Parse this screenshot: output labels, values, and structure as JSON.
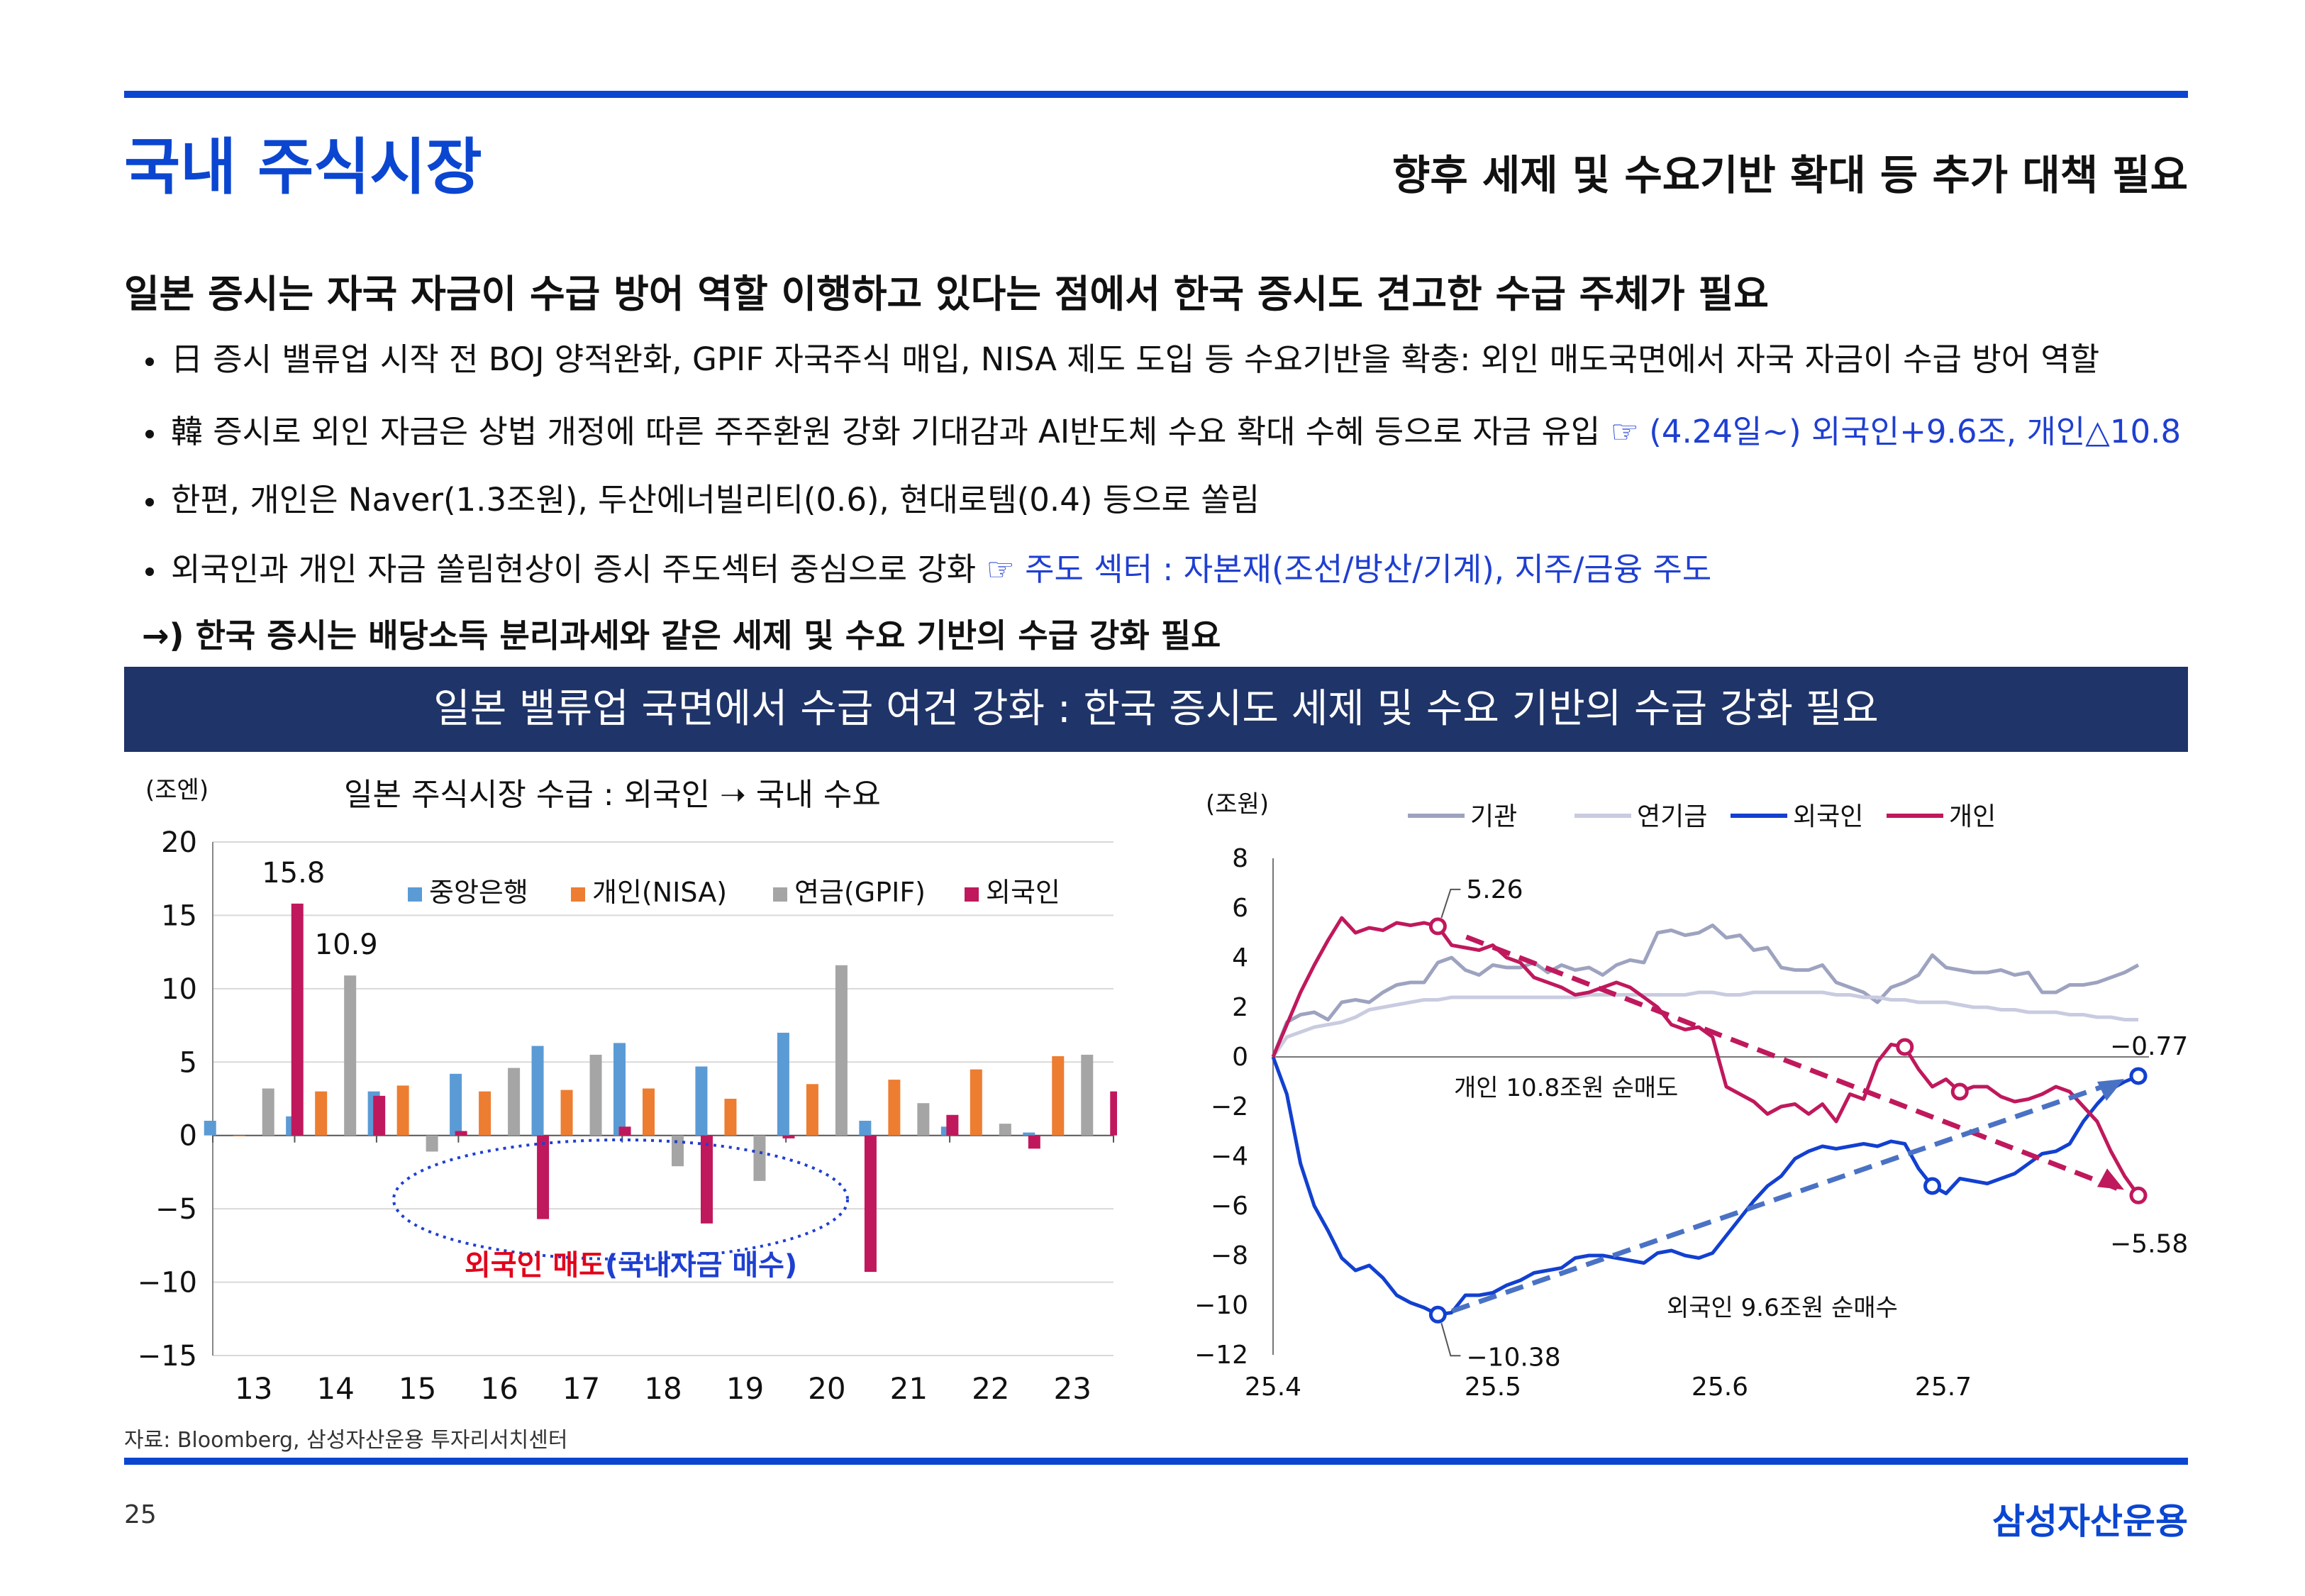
{
  "header": {
    "title": "국내 주식시장",
    "subtitle": "향후 세제 및 수요기반 확대 등 추가 대책 필요"
  },
  "headline": "일본 증시는 자국 자금이 수급 방어 역할 이행하고 있다는 점에서 한국 증시도 견고한 수급 주체가 필요",
  "bullets": [
    {
      "text": "日 증시 밸류업 시작 전 BOJ 양적완화, GPIF 자국주식 매입, NISA 제도 도입 등 수요기반을 확충: 외인 매도국면에서 자국 자금이 수급 방어 역할",
      "note": ""
    },
    {
      "text": "韓 증시로 외인 자금은 상법 개정에 따른 주주환원 강화 기대감과 AI반도체 수요 확대 수혜 등으로 자금 유입 ",
      "note": "☞ (4.24일~) 외국인+9.6조, 개인△10.8"
    },
    {
      "text": "한편, 개인은 Naver(1.3조원), 두산에너빌리티(0.6), 현대로템(0.4) 등으로 쏠림",
      "note": ""
    },
    {
      "text": "외국인과 개인 자금 쏠림현상이 증시 주도섹터 중심으로 강화 ",
      "note": "☞ 주도 섹터 : 자본재(조선/방산/기계), 지주/금융 주도"
    }
  ],
  "conclusion": "→)  한국 증시는 배당소득 분리과세와 같은 세제 및 수요 기반의 수급 강화 필요",
  "banner": "일본 밸류업 국면에서 수급 여건 강화 : 한국 증시도 세제 및 수요 기반의 수급 강화 필요",
  "colors": {
    "brand": "#0b46d1",
    "banner_bg": "#1f3468",
    "central_bank": "#5b9bd5",
    "retail_nisa": "#ed7d31",
    "pension_gpif": "#a5a5a5",
    "foreign": "#c0185c",
    "inst": "#9da3bf",
    "pension_fund": "#c9cce0",
    "foreigner_kr": "#1240d0",
    "retail_kr": "#c0185c"
  },
  "chart_data": [
    {
      "type": "bar",
      "title": "일본 주식시장 수급 : 외국인 ➝ 국내 수요",
      "unit_label": "(조엔)",
      "categories": [
        "13",
        "14",
        "15",
        "16",
        "17",
        "18",
        "19",
        "20",
        "21",
        "22",
        "23"
      ],
      "ylim": [
        -15,
        20
      ],
      "yticks": [
        "20",
        "15",
        "10",
        "5",
        "0",
        "−5",
        "−10",
        "−15"
      ],
      "series": [
        {
          "name": "중앙은행",
          "values": [
            1.0,
            1.3,
            3.0,
            4.2,
            6.1,
            6.3,
            4.7,
            7.0,
            1.0,
            0.6,
            0.2
          ]
        },
        {
          "name": "개인(NISA)",
          "values": [
            0,
            3.0,
            3.4,
            3.0,
            3.1,
            3.2,
            2.5,
            3.5,
            3.8,
            4.5,
            5.4
          ]
        },
        {
          "name": "연금(GPIF)",
          "values": [
            3.2,
            10.9,
            -1.1,
            4.6,
            5.5,
            -2.1,
            -3.1,
            11.6,
            2.2,
            0.8,
            5.5
          ]
        },
        {
          "name": "외국인",
          "values": [
            15.8,
            2.7,
            0.3,
            -5.7,
            0.6,
            -6.0,
            -0.2,
            -9.3,
            1.4,
            -0.9,
            3.0
          ]
        }
      ],
      "data_labels": [
        "15.8",
        "10.9"
      ],
      "annotation": {
        "red": "외국인 매도",
        "blue": "(국내자금 매수)"
      }
    },
    {
      "type": "line",
      "unit_label": "(조원)",
      "ylim": [
        -12,
        8
      ],
      "yticks": [
        "8",
        "6",
        "4",
        "2",
        "0",
        "−2",
        "−4",
        "−6",
        "−8",
        "−10",
        "−12"
      ],
      "xticks": [
        "25.4",
        "25.5",
        "25.6",
        "25.7"
      ],
      "series": [
        {
          "name": "기관",
          "values": [
            0,
            1.4,
            1.7,
            1.8,
            1.5,
            2.2,
            2.3,
            2.2,
            2.6,
            2.9,
            3.0,
            3.0,
            3.8,
            4.0,
            3.5,
            3.3,
            3.7,
            3.6,
            3.6,
            3.8,
            3.4,
            3.7,
            3.5,
            3.6,
            3.3,
            3.7,
            3.9,
            3.8,
            5.0,
            5.1,
            4.9,
            5.0,
            5.3,
            4.8,
            4.9,
            4.3,
            4.4,
            3.6,
            3.5,
            3.5,
            3.7,
            3.0,
            2.8,
            2.6,
            2.2,
            2.8,
            3.0,
            3.3,
            4.1,
            3.6,
            3.5,
            3.4,
            3.4,
            3.5,
            3.3,
            3.4,
            2.6,
            2.6,
            2.9,
            2.9,
            3.0,
            3.2,
            3.4,
            3.7
          ]
        },
        {
          "name": "연기금",
          "values": [
            0,
            0.8,
            1.0,
            1.2,
            1.3,
            1.4,
            1.6,
            1.9,
            2.0,
            2.1,
            2.2,
            2.3,
            2.3,
            2.4,
            2.4,
            2.4,
            2.4,
            2.4,
            2.4,
            2.4,
            2.4,
            2.4,
            2.4,
            2.5,
            2.5,
            2.5,
            2.5,
            2.5,
            2.5,
            2.5,
            2.5,
            2.6,
            2.6,
            2.5,
            2.5,
            2.6,
            2.6,
            2.6,
            2.6,
            2.6,
            2.6,
            2.5,
            2.5,
            2.4,
            2.4,
            2.3,
            2.3,
            2.2,
            2.2,
            2.2,
            2.1,
            2.0,
            2.0,
            1.9,
            1.9,
            1.8,
            1.8,
            1.8,
            1.7,
            1.7,
            1.6,
            1.6,
            1.5,
            1.5
          ]
        },
        {
          "name": "외국인",
          "values": [
            0,
            -1.5,
            -4.3,
            -6.0,
            -7.0,
            -8.1,
            -8.6,
            -8.4,
            -8.9,
            -9.6,
            -9.9,
            -10.1,
            -10.38,
            -10.3,
            -9.6,
            -9.6,
            -9.5,
            -9.2,
            -9.0,
            -8.7,
            -8.6,
            -8.5,
            -8.1,
            -8.0,
            -8.0,
            -8.1,
            -8.2,
            -8.3,
            -7.9,
            -7.8,
            -8.0,
            -8.1,
            -7.9,
            -7.2,
            -6.5,
            -5.8,
            -5.2,
            -4.8,
            -4.1,
            -3.8,
            -3.6,
            -3.7,
            -3.6,
            -3.5,
            -3.6,
            -3.4,
            -3.5,
            -4.5,
            -5.2,
            -5.5,
            -4.9,
            -5.0,
            -5.1,
            -4.9,
            -4.7,
            -4.3,
            -3.9,
            -3.8,
            -3.5,
            -2.6,
            -1.9,
            -1.3,
            -1.0,
            -0.77
          ]
        },
        {
          "name": "개인",
          "values": [
            0,
            1.3,
            2.6,
            3.7,
            4.7,
            5.6,
            5.0,
            5.2,
            5.1,
            5.4,
            5.3,
            5.4,
            5.26,
            4.5,
            4.4,
            4.3,
            4.5,
            4.0,
            3.8,
            3.2,
            3.0,
            2.8,
            2.5,
            2.6,
            2.8,
            3.0,
            2.8,
            2.4,
            2.0,
            1.3,
            1.1,
            1.2,
            0.8,
            -1.2,
            -1.5,
            -1.8,
            -2.3,
            -2.0,
            -1.9,
            -2.3,
            -1.9,
            -2.6,
            -1.5,
            -1.7,
            -0.2,
            0.5,
            0.4,
            -0.5,
            -1.2,
            -0.9,
            -1.4,
            -1.2,
            -1.2,
            -1.6,
            -1.8,
            -1.7,
            -1.5,
            -1.2,
            -1.4,
            -2.0,
            -2.6,
            -3.8,
            -4.8,
            -5.58
          ]
        }
      ],
      "labels": {
        "ind_max": "5.26",
        "for_min": "−10.38",
        "for_end": "−0.77",
        "ind_end": "−5.58"
      },
      "annotations": {
        "ind": "개인 10.8조원 순매도",
        "for": "외국인 9.6조원 순매수"
      }
    }
  ],
  "footer": {
    "source": "자료: Bloomberg, 삼성자산운용 투자리서치센터",
    "page": "25",
    "logo": "삼성자산운용"
  }
}
